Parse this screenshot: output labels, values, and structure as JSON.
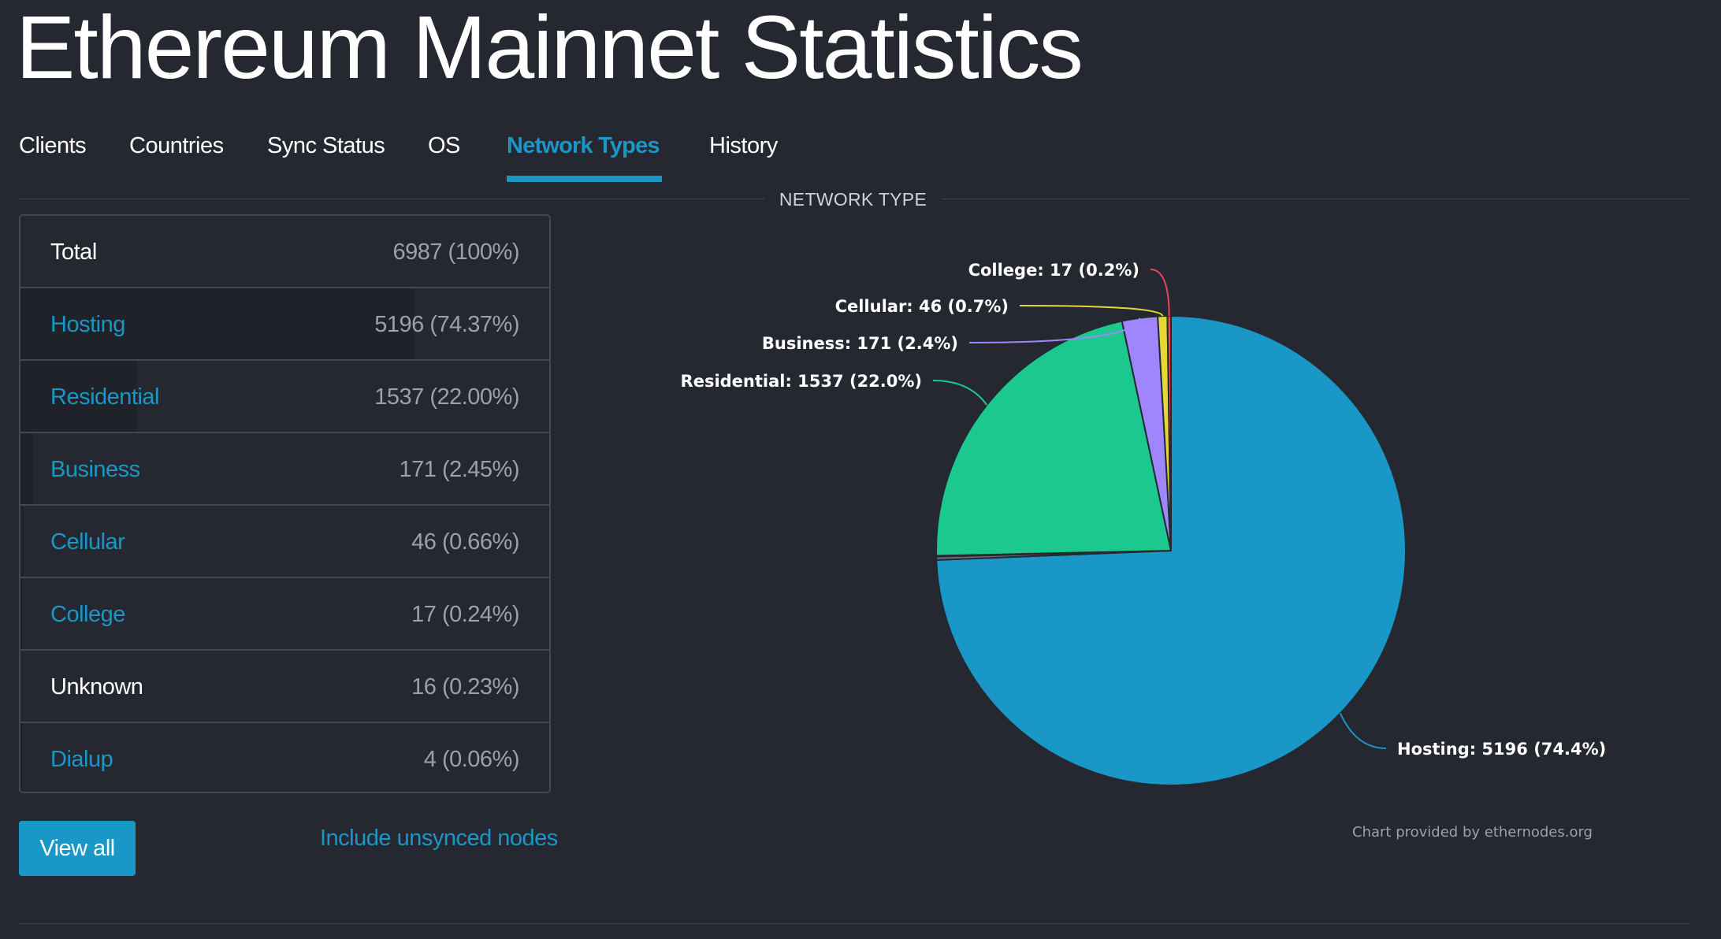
{
  "page": {
    "title": "Ethereum Mainnet Statistics"
  },
  "tabs": [
    {
      "label": "Clients",
      "active": false
    },
    {
      "label": "Countries",
      "active": false
    },
    {
      "label": "Sync Status",
      "active": false
    },
    {
      "label": "OS",
      "active": false
    },
    {
      "label": "Network Types",
      "active": true
    },
    {
      "label": "History",
      "active": false
    }
  ],
  "section": {
    "label": "NETWORK TYPE"
  },
  "table": {
    "rows": [
      {
        "label": "Total",
        "value": "6987 (100%)",
        "is_link": false,
        "share": 0
      },
      {
        "label": "Hosting",
        "value": "5196 (74.37%)",
        "is_link": true,
        "share": 0.7437
      },
      {
        "label": "Residential",
        "value": "1537 (22.00%)",
        "is_link": true,
        "share": 0.22
      },
      {
        "label": "Business",
        "value": "171 (2.45%)",
        "is_link": true,
        "share": 0.0245
      },
      {
        "label": "Cellular",
        "value": "46 (0.66%)",
        "is_link": true,
        "share": 0.0066
      },
      {
        "label": "College",
        "value": "17 (0.24%)",
        "is_link": true,
        "share": 0.0024
      },
      {
        "label": "Unknown",
        "value": "16 (0.23%)",
        "is_link": false,
        "share": 0.0023
      },
      {
        "label": "Dialup",
        "value": "4 (0.06%)",
        "is_link": true,
        "share": 0.0006
      }
    ]
  },
  "actions": {
    "view_all": "View all",
    "include_unsynced": "Include unsynced nodes"
  },
  "chart_credit": "Chart provided by ethernodes.org",
  "colors": {
    "accent": "#1997c6",
    "background": "#252830",
    "border": "#434857"
  },
  "chart_data": {
    "type": "pie",
    "title": "NETWORK TYPE",
    "slices": [
      {
        "name": "Hosting",
        "value": 5196,
        "label": "Hosting: 5196 (74.4%)",
        "color": "#1997c6"
      },
      {
        "name": "Unknown",
        "value": 16,
        "label": "",
        "color": "#6c7180"
      },
      {
        "name": "Dialup",
        "value": 4,
        "label": "",
        "color": "#9a9da6"
      },
      {
        "name": "Residential",
        "value": 1537,
        "label": "Residential: 1537 (22.0%)",
        "color": "#1bc98e"
      },
      {
        "name": "Business",
        "value": 171,
        "label": "Business: 171 (2.4%)",
        "color": "#9f86ff"
      },
      {
        "name": "Cellular",
        "value": 46,
        "label": "Cellular: 46 (0.7%)",
        "color": "#e4d836"
      },
      {
        "name": "College",
        "value": 17,
        "label": "College: 17 (0.2%)",
        "color": "#e64759"
      }
    ]
  }
}
